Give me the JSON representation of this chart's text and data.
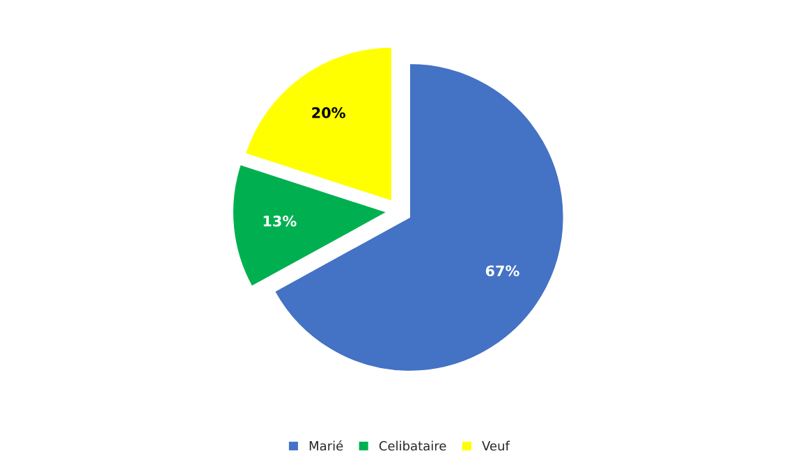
{
  "chart_data": {
    "type": "pie",
    "categories": [
      "Marié",
      "Celibataire",
      "Veuf"
    ],
    "values": [
      67,
      13,
      20
    ],
    "colors": [
      "#4472c4",
      "#00b050",
      "#ffff00"
    ],
    "value_labels": [
      "67%",
      "13%",
      "20%"
    ],
    "legend": "bottom"
  }
}
